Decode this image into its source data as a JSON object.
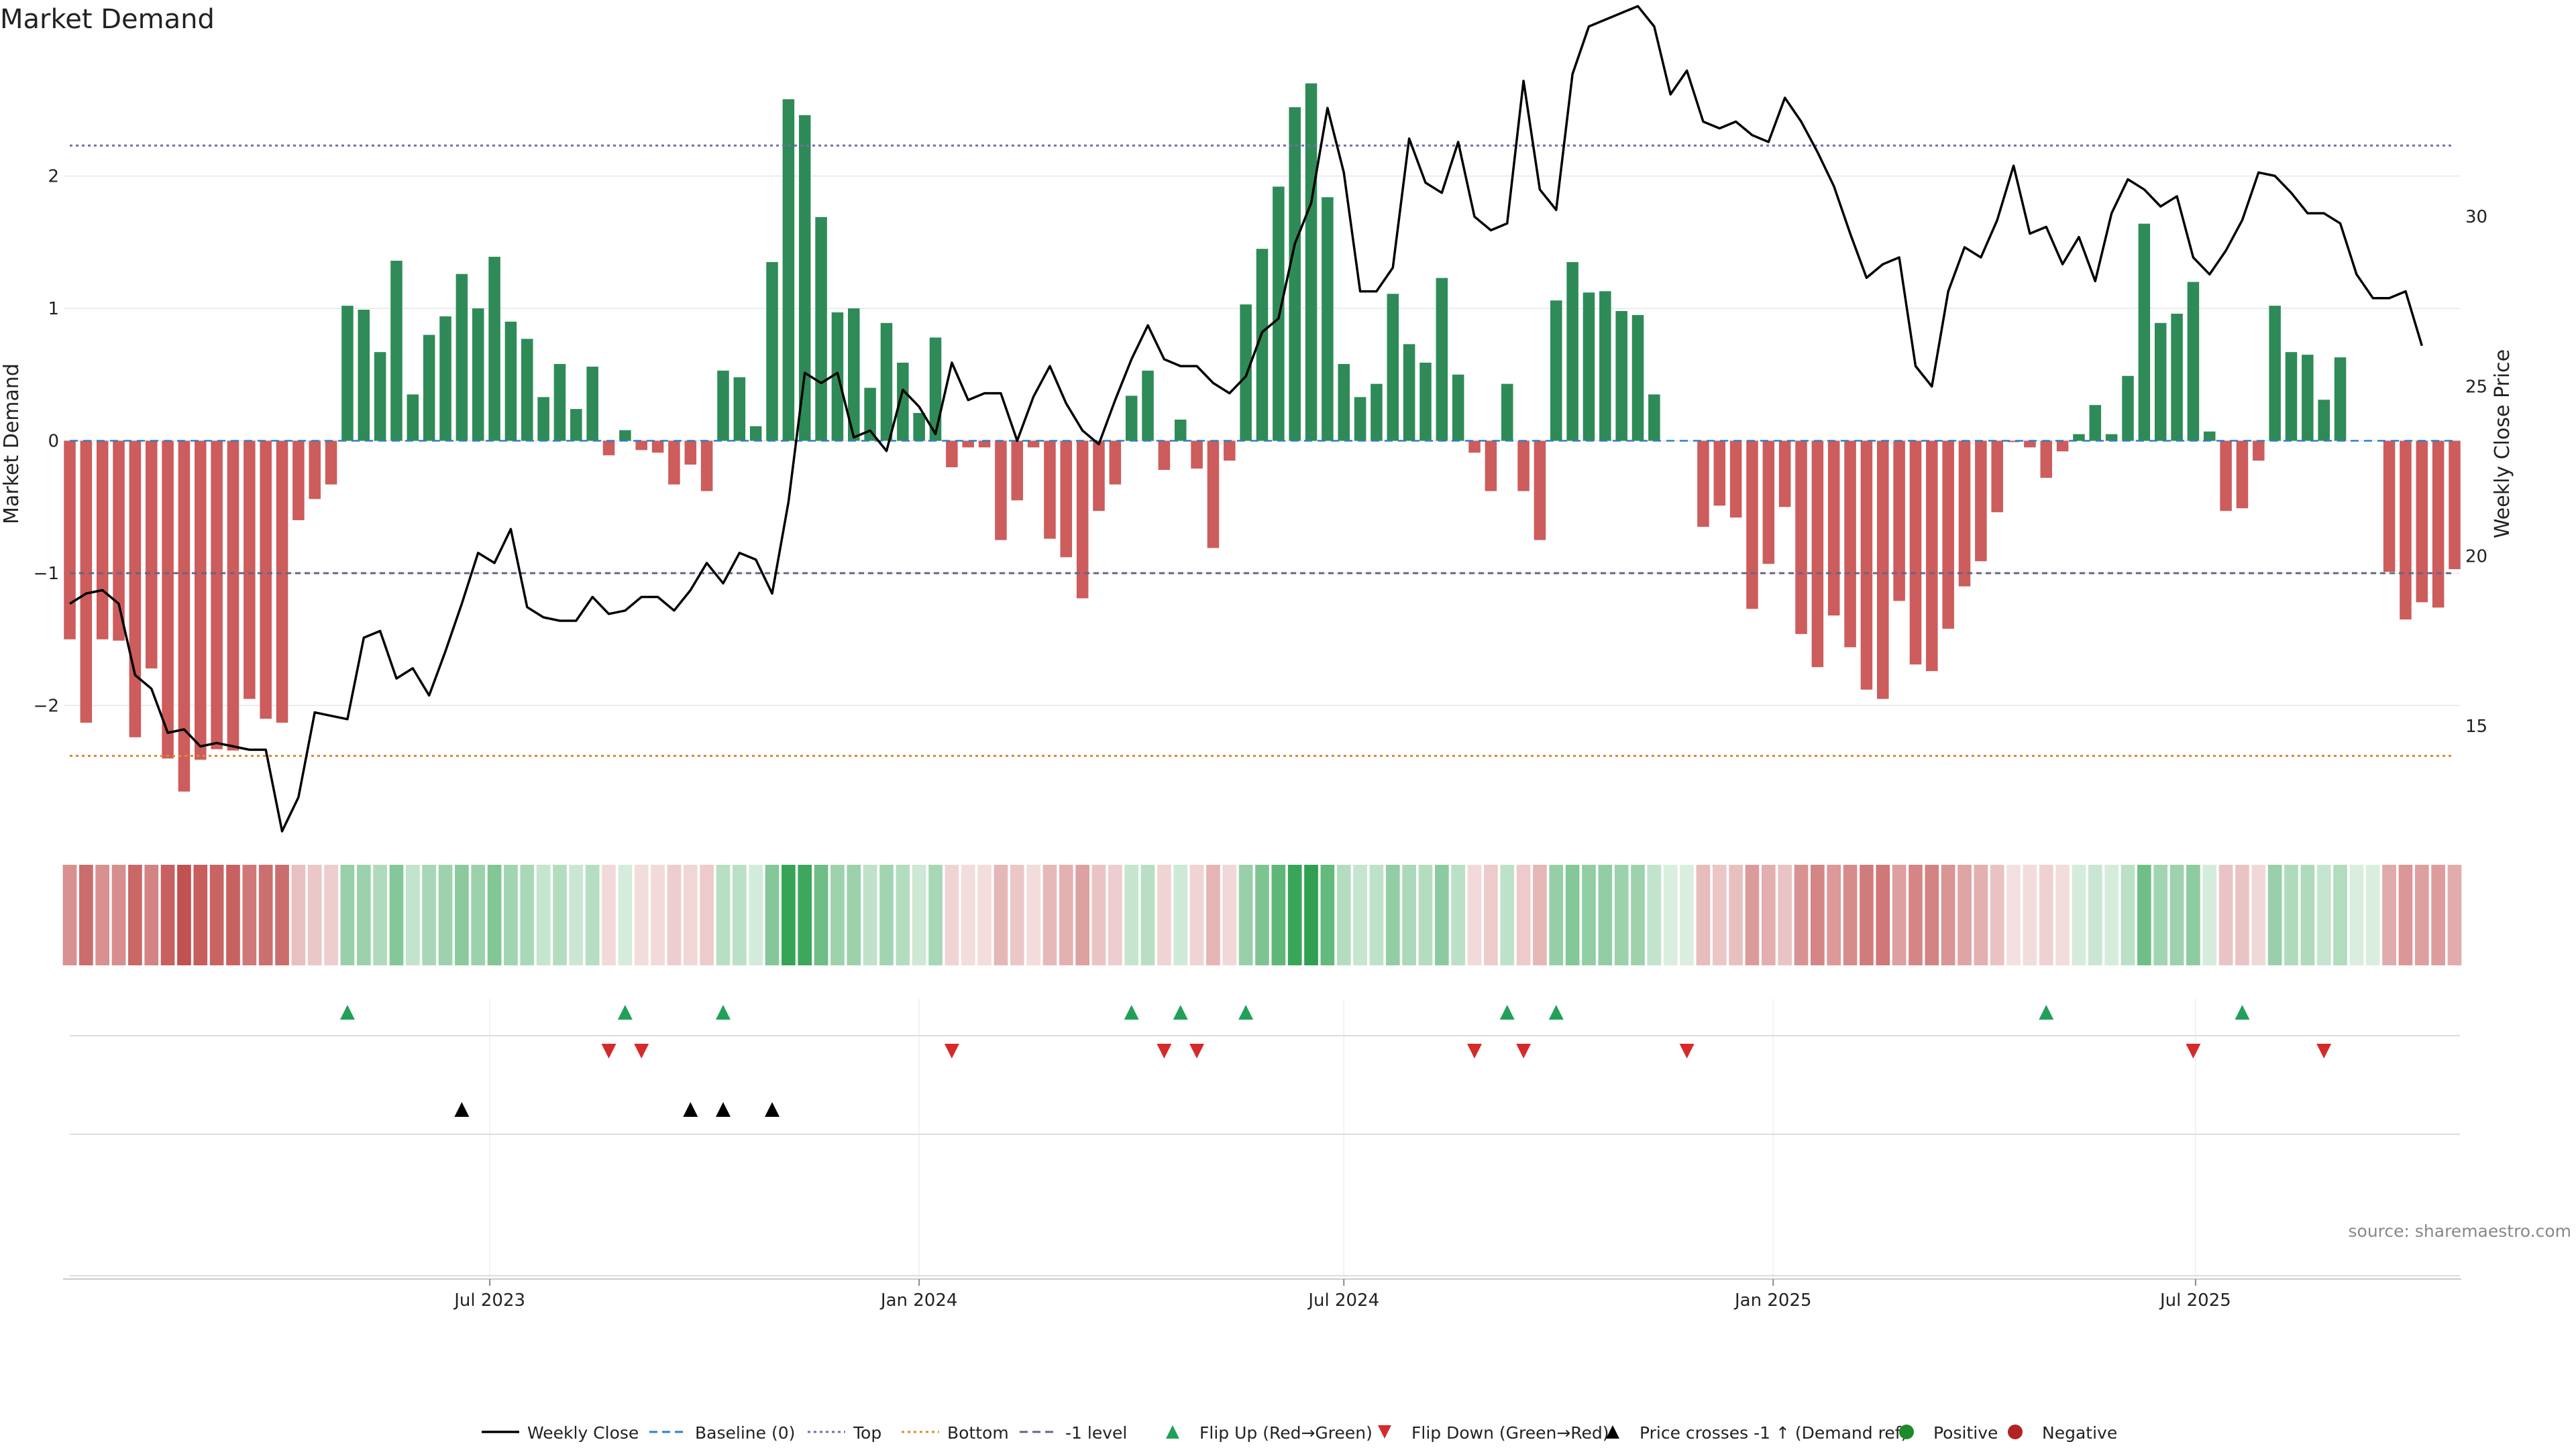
{
  "chart_data": {
    "type": "bar",
    "title": "Market Demand",
    "ylabel_left": "Market Demand",
    "ylabel_right": "Weekly Close Price",
    "source": "source: sharemaestro.com",
    "x_tick_labels": [
      "Jul 2023",
      "Jan 2024",
      "Jul 2024",
      "Jan 2025",
      "Jul 2025"
    ],
    "y_left_ticks": [
      "2",
      "1",
      "0",
      "−1",
      "−2"
    ],
    "y_left_tick_values": [
      2,
      1,
      0,
      -1,
      -2
    ],
    "y_left_range": [
      -2.95,
      2.95
    ],
    "y_right_ticks": [
      "30",
      "25",
      "20",
      "15"
    ],
    "y_right_tick_values": [
      30,
      25,
      20,
      15
    ],
    "y_right_range": [
      11.9,
      34.9
    ],
    "reference_lines": {
      "top": 2.23,
      "bottom": -2.38,
      "minus_one": -1.0,
      "baseline": 0
    },
    "weeks_start": "2023-01-02",
    "series": [
      {
        "name": "Market Demand",
        "values": [
          -1.5,
          -2.13,
          -1.5,
          -1.51,
          -2.24,
          -1.72,
          -2.4,
          -2.65,
          -2.41,
          -2.33,
          -2.34,
          -1.95,
          -2.1,
          -2.13,
          -0.6,
          -0.44,
          -0.33,
          1.02,
          0.99,
          0.67,
          1.36,
          0.35,
          0.8,
          0.94,
          1.26,
          1.0,
          1.39,
          0.9,
          0.77,
          0.33,
          0.58,
          0.24,
          0.56,
          -0.11,
          0.08,
          -0.07,
          -0.09,
          -0.33,
          -0.18,
          -0.38,
          0.53,
          0.48,
          0.11,
          1.35,
          2.58,
          2.46,
          1.69,
          0.97,
          1.0,
          0.4,
          0.89,
          0.59,
          0.21,
          0.78,
          -0.2,
          -0.05,
          -0.05,
          -0.75,
          -0.45,
          -0.05,
          -0.74,
          -0.88,
          -1.19,
          -0.53,
          -0.33,
          0.34,
          0.53,
          -0.22,
          0.16,
          -0.21,
          -0.81,
          -0.15,
          1.03,
          1.45,
          1.92,
          2.52,
          2.7,
          1.84,
          0.58,
          0.33,
          0.43,
          1.11,
          0.73,
          0.59,
          1.23,
          0.5,
          -0.09,
          -0.38,
          0.43,
          -0.38,
          -0.75,
          1.06,
          1.35,
          1.12,
          1.13,
          0.98,
          0.95,
          0.35,
          0.0,
          0.0,
          -0.65,
          -0.49,
          -0.58,
          -1.27,
          -0.93,
          -0.5,
          -1.46,
          -1.71,
          -1.32,
          -1.56,
          -1.88,
          -1.95,
          -1.21,
          -1.69,
          -1.74,
          -1.42,
          -1.1,
          -0.91,
          -0.54,
          -0.01,
          -0.05,
          -0.28,
          -0.08,
          0.05,
          0.27,
          0.05,
          0.49,
          1.64,
          0.89,
          0.96,
          1.2,
          0.07,
          -0.53,
          -0.51,
          -0.15,
          1.02,
          0.67,
          0.65,
          0.31,
          0.63,
          0.0,
          0.0,
          -0.99,
          -1.35,
          -1.22,
          -1.26,
          -0.97
        ]
      },
      {
        "name": "Weekly Close",
        "values": [
          18.6,
          18.9,
          19.0,
          18.6,
          16.5,
          16.1,
          14.8,
          14.9,
          14.4,
          14.5,
          14.4,
          14.3,
          14.3,
          11.9,
          12.9,
          15.4,
          15.3,
          15.2,
          17.6,
          17.8,
          16.4,
          16.7,
          15.9,
          17.2,
          18.6,
          20.1,
          19.8,
          20.8,
          18.5,
          18.2,
          18.1,
          18.1,
          18.8,
          18.3,
          18.4,
          18.8,
          18.8,
          18.4,
          19.0,
          19.8,
          19.2,
          20.1,
          19.9,
          18.9,
          21.6,
          25.4,
          25.1,
          25.4,
          23.5,
          23.7,
          23.1,
          24.9,
          24.4,
          23.6,
          25.7,
          24.6,
          24.8,
          24.8,
          23.4,
          24.7,
          25.6,
          24.5,
          23.7,
          23.3,
          24.6,
          25.8,
          26.8,
          25.8,
          25.6,
          25.6,
          25.1,
          24.8,
          25.3,
          26.6,
          27.0,
          29.2,
          30.4,
          33.2,
          31.3,
          27.8,
          27.8,
          28.5,
          32.3,
          31.0,
          30.7,
          32.2,
          30.0,
          29.6,
          29.8,
          34.0,
          30.8,
          30.2,
          34.2,
          35.6,
          35.8,
          36.0,
          36.2,
          35.6,
          33.6,
          34.3,
          32.8,
          32.6,
          32.8,
          32.4,
          32.2,
          33.5,
          32.8,
          31.9,
          30.9,
          29.5,
          28.2,
          28.6,
          28.8,
          25.6,
          25.0,
          27.8,
          29.1,
          28.8,
          29.9,
          31.5,
          29.5,
          29.7,
          28.6,
          29.4,
          28.1,
          30.1,
          31.1,
          30.8,
          30.3,
          30.6,
          28.8,
          28.3,
          29.0,
          29.9,
          31.3,
          31.2,
          30.7,
          30.1,
          30.1,
          29.8,
          28.3,
          27.6,
          27.6,
          27.8,
          26.2
        ]
      }
    ],
    "flip_up_weeks": [
      17,
      34,
      40,
      65,
      68,
      72,
      88,
      91,
      121,
      133
    ],
    "flip_down_weeks": [
      33,
      35,
      54,
      67,
      69,
      86,
      89,
      99,
      130,
      138
    ],
    "price_cross_weeks": [
      24,
      38,
      40,
      43
    ],
    "legend": [
      {
        "label": "Weekly Close",
        "symbol": "line",
        "color": "#000000"
      },
      {
        "label": "Baseline (0)",
        "symbol": "dash",
        "color": "#2f7fc1"
      },
      {
        "label": "Top",
        "symbol": "dot",
        "color": "#6f6fa8"
      },
      {
        "label": "Bottom",
        "symbol": "dot",
        "color": "#e08a2a"
      },
      {
        "label": "-1 level",
        "symbol": "dash",
        "color": "#666680"
      },
      {
        "label": "Flip Up (Red→Green)",
        "symbol": "tri-up",
        "color": "#22a05a"
      },
      {
        "label": "Flip Down (Green→Red)",
        "symbol": "tri-down",
        "color": "#d62a2a"
      },
      {
        "label": "Price crosses -1 ↑ (Demand ref)",
        "symbol": "tri-up",
        "color": "#000000"
      },
      {
        "label": "Positive",
        "symbol": "circle",
        "color": "#1e8a2a"
      },
      {
        "label": "Negative",
        "symbol": "circle",
        "color": "#b22222"
      }
    ],
    "colors": {
      "positive_bar": "#2e8b57",
      "negative_bar": "#cd5c5c",
      "price_line": "#000000",
      "grid": "#e6e6e6"
    }
  }
}
